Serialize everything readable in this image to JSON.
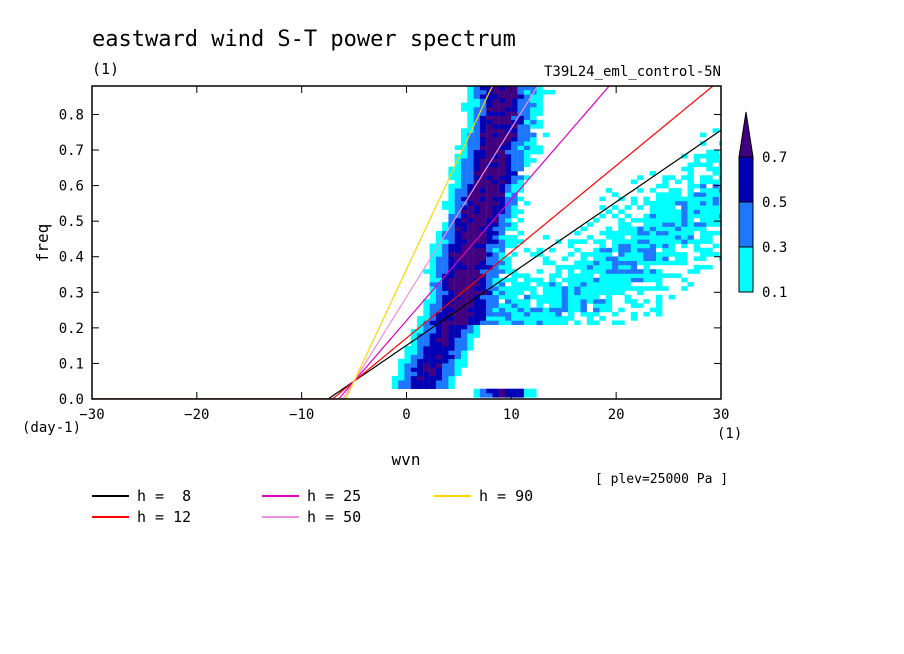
{
  "chart_data": {
    "type": "heatmap",
    "title": "eastward wind S-T power spectrum",
    "subtitle_left": "(1)",
    "subtitle_right": "T39L24_eml_control-5N",
    "xlabel": "wvn",
    "ylabel": "freq",
    "x_unit": "(1)",
    "y_unit": "(day-1)",
    "annotation": "[ plev=25000 Pa ]",
    "xlim": [
      -30,
      30
    ],
    "ylim": [
      0,
      0.88
    ],
    "xticks": [
      -30,
      -20,
      -10,
      0,
      10,
      20,
      30
    ],
    "yticks": [
      0.0,
      0.1,
      0.2,
      0.3,
      0.4,
      0.5,
      0.6,
      0.7,
      0.8
    ],
    "ytick_labels": [
      "0.0",
      "0.1",
      "0.2",
      "0.3",
      "0.4",
      "0.5",
      "0.6",
      "0.7",
      "0.8"
    ],
    "colorbar": {
      "levels": [
        "0.1",
        "0.3",
        "0.5",
        "0.7"
      ],
      "colors": [
        "#00ffff",
        "#1e78ff",
        "#0000b4",
        "#400080"
      ]
    },
    "spectrum_ridge": [
      {
        "x": 1,
        "y": 0.02
      },
      {
        "x": 2,
        "y": 0.08
      },
      {
        "x": 3,
        "y": 0.15
      },
      {
        "x": 4,
        "y": 0.22
      },
      {
        "x": 5,
        "y": 0.3
      },
      {
        "x": 5.5,
        "y": 0.4
      },
      {
        "x": 6.5,
        "y": 0.5
      },
      {
        "x": 7.5,
        "y": 0.62
      },
      {
        "x": 8.5,
        "y": 0.75
      },
      {
        "x": 9,
        "y": 0.88
      }
    ],
    "series": [
      {
        "name": "h =  8",
        "color": "#000000",
        "h": 8
      },
      {
        "name": "h = 12",
        "color": "#ff0000",
        "h": 12
      },
      {
        "name": "h = 25",
        "color": "#e000c0",
        "h": 25
      },
      {
        "name": "h = 50",
        "color": "#ee90e0",
        "h": 50
      },
      {
        "name": "h = 90",
        "color": "#ffd700",
        "h": 90
      }
    ]
  }
}
